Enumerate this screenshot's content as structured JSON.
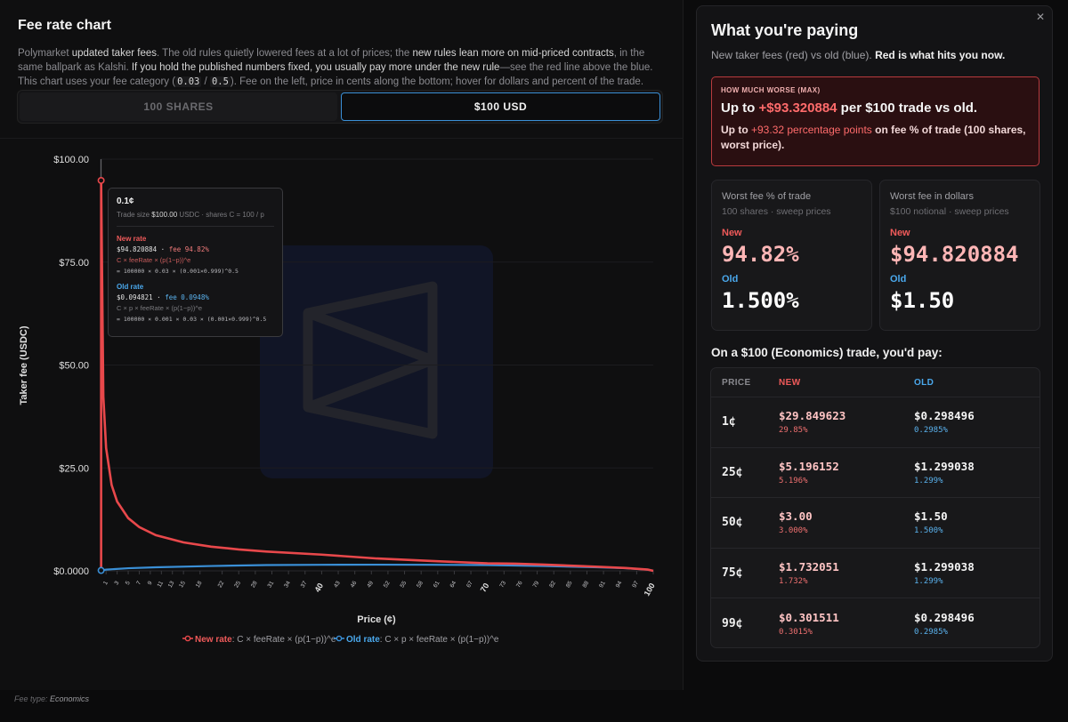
{
  "left": {
    "title": "Fee rate chart",
    "desc": {
      "p1": "Polymarket ",
      "b1": "updated taker fees",
      "p2": ". The old rules quietly lowered fees at a lot of prices; the ",
      "b2": "new rules lean more on mid-priced contracts",
      "p3": ", in the same ballpark as Kalshi. ",
      "b3": "If you hold the published numbers fixed, you usually pay more under the new rule",
      "p4": "—see the red line above the blue. This chart uses your fee category (",
      "code1": "0.03",
      "p5": " / ",
      "code2": "0.5",
      "p6": "). Fee on the left, price in cents along the bottom; hover for dollars and percent of the trade."
    },
    "toggle": {
      "shares": "100 SHARES",
      "usd": "$100 USD",
      "selected": "usd"
    },
    "footer": {
      "label": "Fee type: ",
      "value": "Economics"
    }
  },
  "tooltip": {
    "price": "0.1¢",
    "size_label": "Trade size ",
    "size_value": "$100.00",
    "size_rest": " USDC · shares C = 100 / p",
    "new_label": "New rate",
    "new_value": "$94.820884",
    "new_sep": " · ",
    "new_pct": "fee 94.82%",
    "new_formula": "C × feeRate × (p(1−p))^e",
    "new_calc": "= 100000 × 0.03 × (0.001×0.999)^0.5",
    "old_label": "Old rate",
    "old_value": "$0.094821",
    "old_sep": " · ",
    "old_pct": "fee 0.0948%",
    "old_formula": "C × p × feeRate × (p(1−p))^e",
    "old_calc": "= 100000 × 0.001 × 0.03 × (0.001×0.999)^0.5"
  },
  "chart_data": {
    "type": "line",
    "title": "",
    "xlabel": "Price (¢)",
    "ylabel": "Taker fee (USDC)",
    "xlim": [
      0,
      100
    ],
    "ylim": [
      0,
      100
    ],
    "ytick_labels": [
      "$0.0000",
      "$25.00",
      "$50.00",
      "$75.00",
      "$100.00"
    ],
    "ytick_values": [
      0,
      25,
      50,
      75,
      100
    ],
    "xtick_labels": [
      "1",
      "3",
      "5",
      "7",
      "9",
      "11",
      "13",
      "15",
      "18",
      "22",
      "25",
      "28",
      "31",
      "34",
      "37",
      "40",
      "43",
      "46",
      "49",
      "52",
      "55",
      "58",
      "61",
      "64",
      "67",
      "70",
      "73",
      "76",
      "79",
      "82",
      "85",
      "88",
      "91",
      "94",
      "97",
      "100"
    ],
    "xtick_major": [
      "40",
      "70",
      "100"
    ],
    "grid": true,
    "legend_placement": "bottom-center",
    "hover_x": 0.1,
    "series": [
      {
        "name": "New rate",
        "legend_formula": ": C × feeRate × (p(1−p))^e",
        "color": "#e8484b",
        "x": [
          0.1,
          0.5,
          1,
          2,
          3,
          5,
          7,
          10,
          15,
          20,
          25,
          30,
          40,
          50,
          60,
          70,
          75,
          80,
          90,
          95,
          99,
          100
        ],
        "values": [
          94.820884,
          42.32,
          29.849623,
          20.85,
          16.82,
          12.81,
          10.64,
          8.66,
          6.91,
          5.88,
          5.196152,
          4.68,
          3.94,
          3.0,
          2.39,
          1.83,
          1.732051,
          1.53,
          1.0,
          0.69,
          0.301511,
          0
        ]
      },
      {
        "name": "Old rate",
        "legend_formula": ": C × p × feeRate × (p(1−p))^e",
        "color": "#3a8fd6",
        "x": [
          0.1,
          1,
          5,
          10,
          20,
          25,
          30,
          40,
          50,
          60,
          70,
          75,
          80,
          90,
          95,
          99,
          100
        ],
        "values": [
          0.094821,
          0.298496,
          0.64,
          0.87,
          1.18,
          1.299038,
          1.4,
          1.47,
          1.5,
          1.47,
          1.4,
          1.299038,
          1.18,
          0.87,
          0.64,
          0.298496,
          0
        ]
      }
    ]
  },
  "right": {
    "title": "What you're paying",
    "sub_plain": "New taker fees (red) vs old (blue). ",
    "sub_bold": "Red is what hits you now.",
    "worse": {
      "kicker": "HOW MUCH WORSE (MAX)",
      "line1_a": "Up to ",
      "line1_acc": "+$93.320884",
      "line1_b": " per $100 trade vs old.",
      "line2_a": "Up to ",
      "line2_acc": "+93.32 percentage points",
      "line2_b": " on fee % of trade (100 shares, worst price)."
    },
    "cards": [
      {
        "title": "Worst fee % of trade",
        "sub": "100 shares · sweep prices",
        "new_label": "New",
        "new_value": "94.82%",
        "old_label": "Old",
        "old_value": "1.500%"
      },
      {
        "title": "Worst fee in dollars",
        "sub": "$100 notional · sweep prices",
        "new_label": "New",
        "new_value": "$94.820884",
        "old_label": "Old",
        "old_value": "$1.50"
      }
    ],
    "pay_title": "On a $100 (Economics) trade, you'd pay:",
    "table": {
      "headers": {
        "price": "PRICE",
        "new": "NEW",
        "old": "OLD"
      },
      "rows": [
        {
          "price": "1¢",
          "new": "$29.849623",
          "new_pct": "29.85%",
          "old": "$0.298496",
          "old_pct": "0.2985%"
        },
        {
          "price": "25¢",
          "new": "$5.196152",
          "new_pct": "5.196%",
          "old": "$1.299038",
          "old_pct": "1.299%"
        },
        {
          "price": "50¢",
          "new": "$3.00",
          "new_pct": "3.000%",
          "old": "$1.50",
          "old_pct": "1.500%"
        },
        {
          "price": "75¢",
          "new": "$1.732051",
          "new_pct": "1.732%",
          "old": "$1.299038",
          "old_pct": "1.299%"
        },
        {
          "price": "99¢",
          "new": "$0.301511",
          "new_pct": "0.3015%",
          "old": "$0.298496",
          "old_pct": "0.2985%"
        }
      ]
    }
  }
}
